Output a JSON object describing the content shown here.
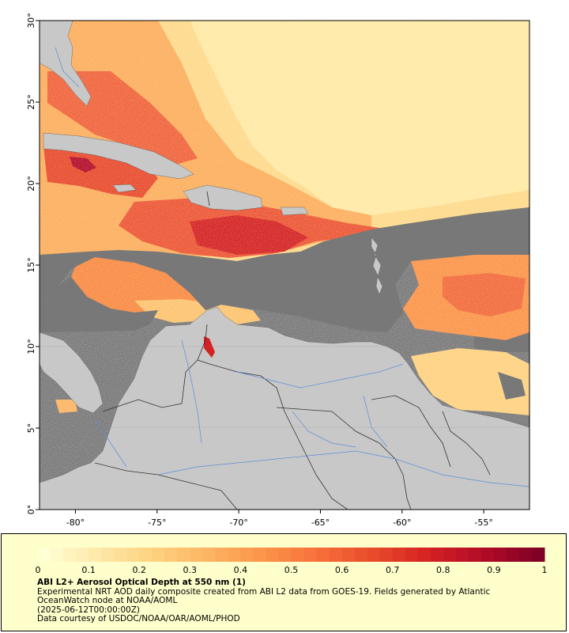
{
  "map": {
    "lon_ticks": [
      "-80°",
      "-75°",
      "-70°",
      "-65°",
      "-60°",
      "-55°"
    ],
    "lat_ticks": [
      "30°",
      "25°",
      "20°",
      "15°",
      "10°",
      "5°",
      "0°"
    ],
    "lon_range": [
      -82.2,
      -52.2
    ],
    "lat_range": [
      0,
      30
    ],
    "colors": {
      "land": "#c8c8c8",
      "no_data": "#787878",
      "border_lines": "#333333",
      "rivers": "#5b8fd4"
    }
  },
  "legend": {
    "colorbar_ticks": [
      "0",
      "0.1",
      "0.2",
      "0.3",
      "0.4",
      "0.5",
      "0.6",
      "0.7",
      "0.8",
      "0.9",
      "1"
    ],
    "colorbar_range": [
      0,
      1
    ],
    "colormap": [
      "#ffffd4",
      "#fee8a8",
      "#fed17f",
      "#fdb463",
      "#fc9348",
      "#f7703b",
      "#e84a2b",
      "#d42222",
      "#b20b28",
      "#800026"
    ],
    "title": "ABI L2+ Aerosol Optical Depth at 550 nm (1)",
    "line1": "Experimental NRT AOD daily composite created from ABI L2 data from GOES-19. Fields generated by Atlantic",
    "line2": "OceanWatch node at NOAA/AOML",
    "line3": "(2025-06-12T00:00:00Z)",
    "line4": "Data courtesy of USDOC/NOAA/OAR/AOML/PHOD"
  }
}
